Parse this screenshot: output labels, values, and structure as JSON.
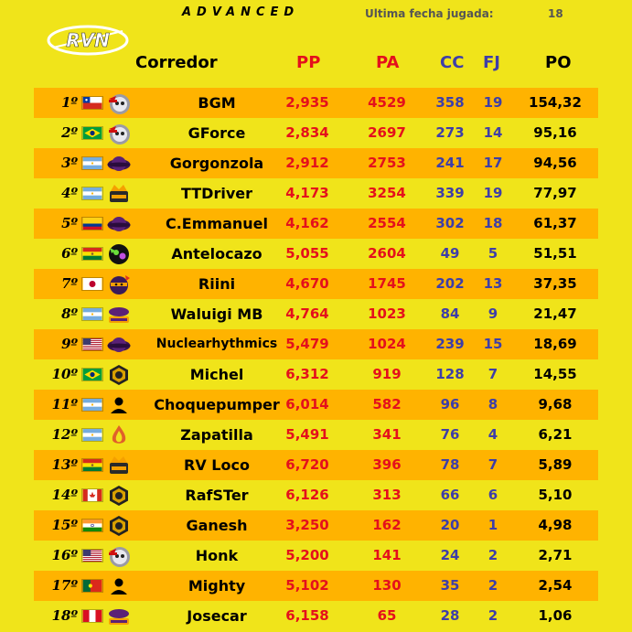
{
  "header": {
    "advanced": "ADVANCED",
    "ultima_label": "Ultima fecha jugada:",
    "ultima_value": "18",
    "logo_text": "RVN"
  },
  "columns": {
    "corredor": "Corredor",
    "pp": "PP",
    "pa": "PA",
    "cc": "CC",
    "fj": "FJ",
    "po": "PO"
  },
  "colors": {
    "background": "#f0e41a",
    "row_highlight": "#ffb300",
    "red": "#e4101c",
    "blue": "#3e3ea8"
  },
  "rows": [
    {
      "pos": "1º",
      "flag": "chile",
      "team": "skull-logo",
      "name": "BGM",
      "pp": "2,935",
      "pa": "4529",
      "cc": "358",
      "fj": "19",
      "po": "154,32"
    },
    {
      "pos": "2º",
      "flag": "brazil",
      "team": "skull-logo",
      "name": "GForce",
      "pp": "2,834",
      "pa": "2697",
      "cc": "273",
      "fj": "14",
      "po": "95,16"
    },
    {
      "pos": "3º",
      "flag": "argentina",
      "team": "purple-planet-logo",
      "name": "Gorgonzola",
      "pp": "2,912",
      "pa": "2753",
      "cc": "241",
      "fj": "17",
      "po": "94,56"
    },
    {
      "pos": "4º",
      "flag": "argentina",
      "team": "crown-logo",
      "name": "TTDriver",
      "pp": "4,173",
      "pa": "3254",
      "cc": "339",
      "fj": "19",
      "po": "77,97"
    },
    {
      "pos": "5º",
      "flag": "colombia",
      "team": "purple-planet-logo",
      "name": "C.Emmanuel",
      "pp": "4,162",
      "pa": "2554",
      "cc": "302",
      "fj": "18",
      "po": "61,37"
    },
    {
      "pos": "6º",
      "flag": "bolivia",
      "team": "green-creature-logo",
      "name": "Antelocazo",
      "pp": "5,055",
      "pa": "2604",
      "cc": "49",
      "fj": "5",
      "po": "51,51"
    },
    {
      "pos": "7º",
      "flag": "japan",
      "team": "ninja-logo",
      "name": "Riini",
      "pp": "4,670",
      "pa": "1745",
      "cc": "202",
      "fj": "13",
      "po": "37,35"
    },
    {
      "pos": "8º",
      "flag": "argentina",
      "team": "guys-logo",
      "name": "Waluigi MB",
      "pp": "4,764",
      "pa": "1023",
      "cc": "84",
      "fj": "9",
      "po": "21,47"
    },
    {
      "pos": "9º",
      "flag": "usa",
      "team": "purple-planet-logo",
      "name": "Nuclearhythmics",
      "pp": "5,479",
      "pa": "1024",
      "cc": "239",
      "fj": "15",
      "po": "18,69"
    },
    {
      "pos": "10º",
      "flag": "brazil",
      "team": "hex-helmet-logo",
      "name": "Michel",
      "pp": "6,312",
      "pa": "919",
      "cc": "128",
      "fj": "7",
      "po": "14,55"
    },
    {
      "pos": "11º",
      "flag": "argentina",
      "team": "person-icon",
      "name": "Choquepumper",
      "pp": "6,014",
      "pa": "582",
      "cc": "96",
      "fj": "8",
      "po": "9,68"
    },
    {
      "pos": "12º",
      "flag": "argentina",
      "team": "flame-logo",
      "name": "Zapatilla",
      "pp": "5,491",
      "pa": "341",
      "cc": "76",
      "fj": "4",
      "po": "6,21"
    },
    {
      "pos": "13º",
      "flag": "bolivia",
      "team": "crown-logo",
      "name": "RV Loco",
      "pp": "6,720",
      "pa": "396",
      "cc": "78",
      "fj": "7",
      "po": "5,89"
    },
    {
      "pos": "14º",
      "flag": "canada",
      "team": "hex-helmet-logo",
      "name": "RafSTer",
      "pp": "6,126",
      "pa": "313",
      "cc": "66",
      "fj": "6",
      "po": "5,10"
    },
    {
      "pos": "15º",
      "flag": "india",
      "team": "hex-helmet-logo",
      "name": "Ganesh",
      "pp": "3,250",
      "pa": "162",
      "cc": "20",
      "fj": "1",
      "po": "4,98"
    },
    {
      "pos": "16º",
      "flag": "usa",
      "team": "skull-logo",
      "name": "Honk",
      "pp": "5,200",
      "pa": "141",
      "cc": "24",
      "fj": "2",
      "po": "2,71"
    },
    {
      "pos": "17º",
      "flag": "portugal",
      "team": "person-icon",
      "name": "Mighty",
      "pp": "5,102",
      "pa": "130",
      "cc": "35",
      "fj": "2",
      "po": "2,54"
    },
    {
      "pos": "18º",
      "flag": "peru",
      "team": "guys-logo",
      "name": "Josecar",
      "pp": "6,158",
      "pa": "65",
      "cc": "28",
      "fj": "2",
      "po": "1,06"
    }
  ]
}
